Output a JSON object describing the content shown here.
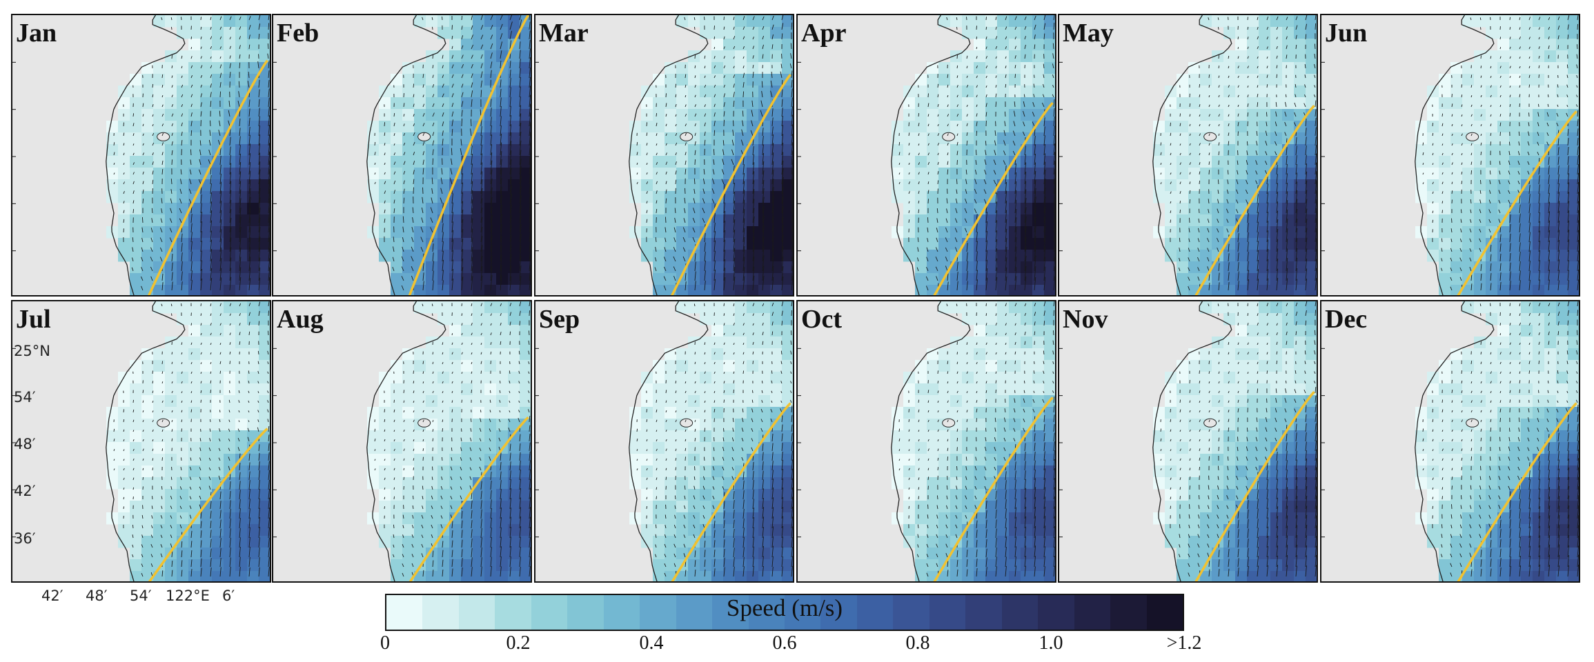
{
  "panels": [
    {
      "month": "Jan",
      "strength": 0.85,
      "front_top": 0.16
    },
    {
      "month": "Feb",
      "strength": 1.0,
      "front_top": 0.0
    },
    {
      "month": "Mar",
      "strength": 0.95,
      "front_top": 0.21
    },
    {
      "month": "Apr",
      "strength": 0.92,
      "front_top": 0.31
    },
    {
      "month": "May",
      "strength": 0.78,
      "front_top": 0.32
    },
    {
      "month": "Jun",
      "strength": 0.66,
      "front_top": 0.34
    },
    {
      "month": "Jul",
      "strength": 0.58,
      "front_top": 0.45
    },
    {
      "month": "Aug",
      "strength": 0.62,
      "front_top": 0.41
    },
    {
      "month": "Sep",
      "strength": 0.64,
      "front_top": 0.36
    },
    {
      "month": "Oct",
      "strength": 0.66,
      "front_top": 0.34
    },
    {
      "month": "Nov",
      "strength": 0.72,
      "front_top": 0.32
    },
    {
      "month": "Dec",
      "strength": 0.74,
      "front_top": 0.36
    }
  ],
  "lat_labels": [
    "25°N",
    "54′",
    "48′",
    "42′",
    "36′"
  ],
  "lon_labels": [
    "42′",
    "48′",
    "54′",
    "122°E",
    "6′"
  ],
  "colorbar": {
    "title": "Speed (m/s)",
    "tick_labels": [
      "0",
      "0.2",
      "0.4",
      "0.6",
      "0.8",
      "1.0",
      ">1.2"
    ],
    "tick_values": [
      0,
      0.2,
      0.4,
      0.6,
      0.8,
      1.0,
      1.2
    ],
    "min": 0,
    "max": 1.2,
    "colors": [
      "#eafafa",
      "#d6f0f1",
      "#c3e8ea",
      "#a7dce0",
      "#93d1da",
      "#82c5d5",
      "#73b8d2",
      "#66a9cd",
      "#5b9bc8",
      "#518ec2",
      "#4a83bc",
      "#4478b6",
      "#3f6cae",
      "#3c60a3",
      "#3a5596",
      "#364a88",
      "#323f78",
      "#2d3567",
      "#282b57",
      "#222246",
      "#1c1a36",
      "#151228"
    ]
  },
  "front_color": "#f2c230",
  "land_color": "#e6e6e6"
}
